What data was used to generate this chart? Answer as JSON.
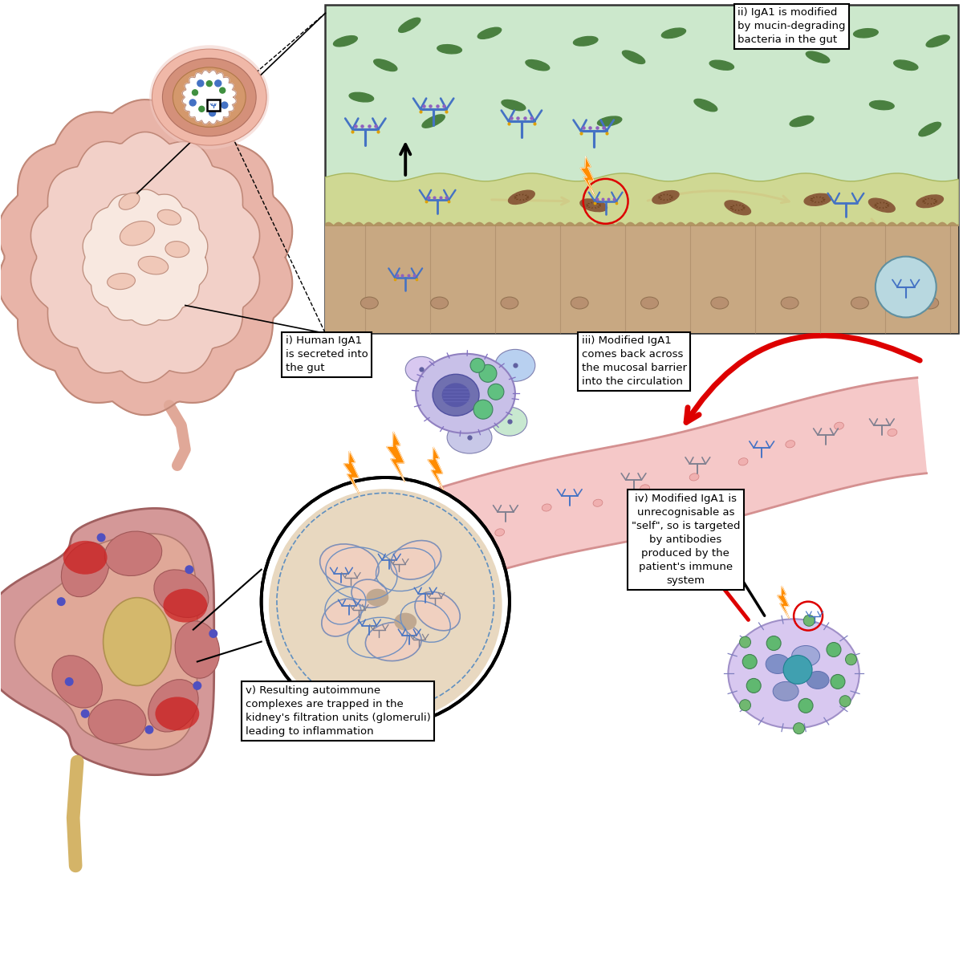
{
  "background_color": "#ffffff",
  "label_i": "i) Human IgA1\nis secreted into\nthe gut",
  "label_ii": "ii) IgA1 is modified\nby mucin-degrading\nbacteria in the gut",
  "label_iii": "iii) Modified IgA1\ncomes back across\nthe mucosal barrier\ninto the circulation",
  "label_iv": "iv) Modified IgA1 is\nunrecognisable as\n\"self\", so is targeted\nby antibodies\nproduced by the\npatient's immune\nsystem",
  "label_v": "v) Resulting autoimmune\ncomplexes are trapped in the\nkidney's filtration units (glomeruli)\nleading to inflammation",
  "gut_lumen_bg": "#d4ecd4",
  "gut_mucus_bg": "#cdd6a0",
  "gut_epithelium_bg": "#c8a882",
  "blood_vessel_color": "#f5c8c8",
  "blood_vessel_edge": "#d49090",
  "plasma_cell_bg": "#c8c0e0",
  "kidney_outer": "#d49090",
  "kidney_medulla": "#c07878",
  "kidney_pelvis": "#d4b878",
  "iga1_blue": "#4472C4",
  "iga1_gray": "#909090",
  "bacteria_brown": "#8B5E3C",
  "bacteria_green": "#4a8c50",
  "arrow_red": "#dd0000",
  "lightning_orange": "#FF8C00",
  "label_box_bg": "#ffffff",
  "label_box_edge": "#000000",
  "intestine_outer": "#e8b0a8",
  "intestine_inner": "#f0d0c8",
  "intestine_lumen": "#ffffff",
  "cs_outer": "#f0c0b8",
  "cs_wall": "#d4906c",
  "cs_mucosa": "#f5e8e0"
}
